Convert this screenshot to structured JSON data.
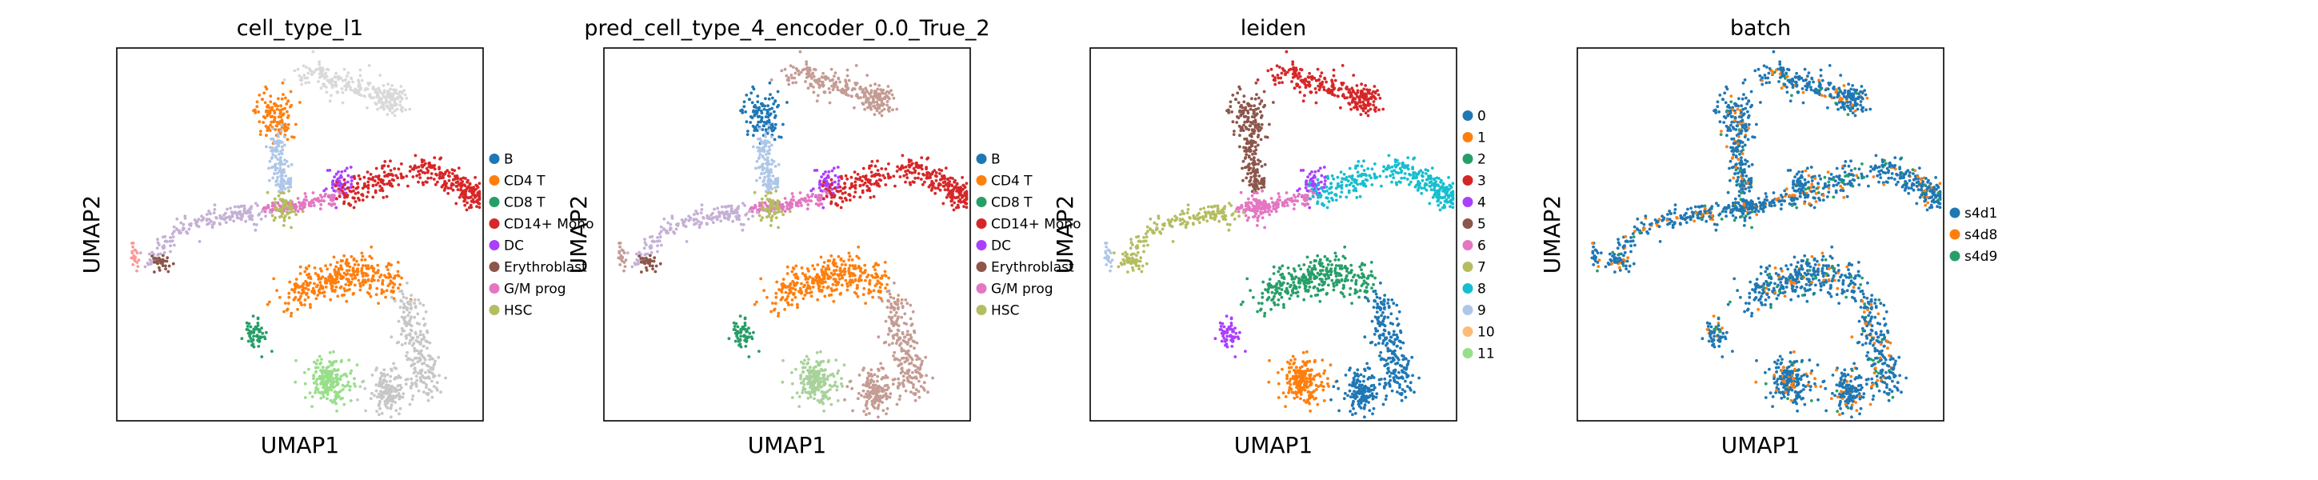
{
  "chart_data": [
    {
      "type": "scatter",
      "title": "cell_type_l1",
      "xlabel": "UMAP1",
      "ylabel": "UMAP2",
      "legend_position": "right",
      "categories": [
        "B",
        "CD4 T",
        "CD8 T",
        "CD14+ Mono",
        "DC",
        "Erythroblast",
        "G/M prog",
        "HSC"
      ],
      "colors": [
        "#1f77b4",
        "#ff7f0e",
        "#279e68",
        "#d62728",
        "#aa40fc",
        "#8c564b",
        "#e377c2",
        "#b5bd61"
      ]
    },
    {
      "type": "scatter",
      "title": "pred_cell_type_4_encoder_0.0_True_2",
      "xlabel": "UMAP1",
      "ylabel": "UMAP2",
      "legend_position": "right",
      "categories": [
        "B",
        "CD4 T",
        "CD8 T",
        "CD14+ Mono",
        "DC",
        "Erythroblast",
        "G/M prog",
        "HSC"
      ],
      "colors": [
        "#1f77b4",
        "#ff7f0e",
        "#279e68",
        "#d62728",
        "#aa40fc",
        "#8c564b",
        "#e377c2",
        "#b5bd61"
      ]
    },
    {
      "type": "scatter",
      "title": "leiden",
      "xlabel": "UMAP1",
      "ylabel": "UMAP2",
      "legend_position": "right",
      "categories": [
        "0",
        "1",
        "2",
        "3",
        "4",
        "5",
        "6",
        "7",
        "8",
        "9",
        "10",
        "11"
      ],
      "colors": [
        "#1f77b4",
        "#ff7f0e",
        "#279e68",
        "#d62728",
        "#aa40fc",
        "#8c564b",
        "#e377c2",
        "#b5bd61",
        "#17becf",
        "#aec7e8",
        "#ffbb78",
        "#98df8a"
      ]
    },
    {
      "type": "scatter",
      "title": "batch",
      "xlabel": "UMAP1",
      "ylabel": "UMAP2",
      "legend_position": "right",
      "categories": [
        "s4d1",
        "s4d8",
        "s4d9"
      ],
      "colors": [
        "#1f77b4",
        "#ff7f0e",
        "#279e68"
      ]
    }
  ]
}
